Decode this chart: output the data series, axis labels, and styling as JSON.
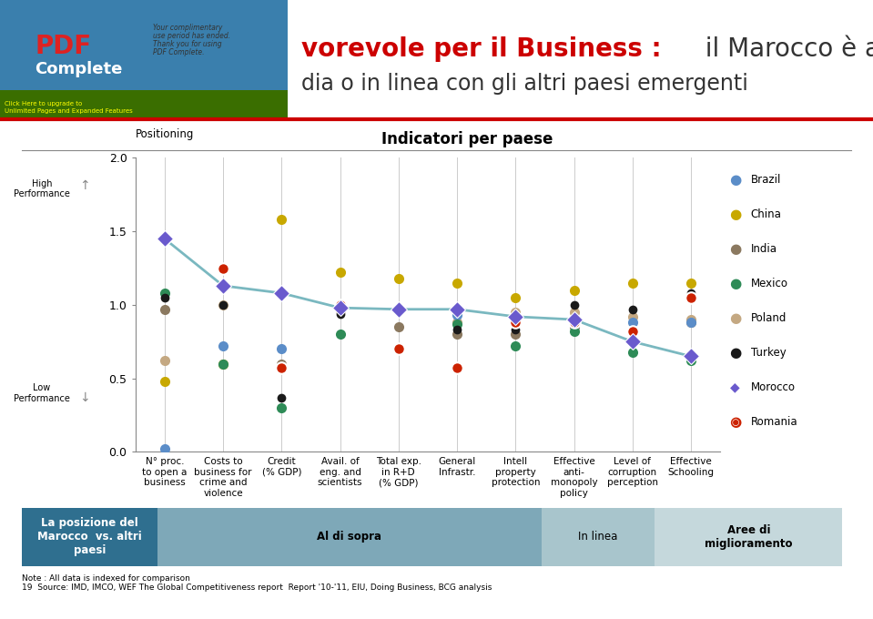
{
  "title": "Indicatori per paese",
  "ylabel": "Positioning",
  "ylim": [
    0.0,
    2.0
  ],
  "yticks": [
    0.0,
    0.5,
    1.0,
    1.5,
    2.0
  ],
  "categories": [
    "N° proc.\nto open a\nbusiness",
    "Costs to\nbusiness for\ncrime and\nviolence",
    "Credit\n(% GDP)",
    "Avail. of\neng. and\nscientists",
    "Total exp.\nin R+D\n(% GDP)",
    "General\nInfrastr.",
    "Intell\nproperty\nprotection",
    "Effective\nanti-\nmonopoly\npolicy",
    "Level of\ncorruption\nperception",
    "Effective\nSchooling"
  ],
  "countries": [
    "Brazil",
    "China",
    "India",
    "Mexico",
    "Poland",
    "Turkey",
    "Morocco",
    "Romania"
  ],
  "colors": {
    "Brazil": "#5b8dc8",
    "China": "#c8a800",
    "India": "#8b7960",
    "Mexico": "#2e8b57",
    "Poland": "#c4a882",
    "Turkey": "#1a1a1a",
    "Morocco": "#6a5acd",
    "Romania": "#cc2200"
  },
  "markers": {
    "Brazil": "o",
    "China": "o",
    "India": "o",
    "Mexico": "o",
    "Poland": "o",
    "Turkey": "o",
    "Morocco": "D",
    "Romania": "o"
  },
  "data": {
    "Brazil": [
      0.02,
      0.72,
      0.7,
      1.0,
      0.97,
      0.93,
      0.92,
      0.9,
      0.88,
      0.88
    ],
    "China": [
      0.48,
      0.6,
      1.58,
      1.22,
      1.18,
      1.15,
      1.05,
      1.1,
      1.15,
      1.15
    ],
    "India": [
      0.97,
      1.13,
      0.6,
      1.0,
      0.85,
      0.8,
      0.8,
      0.85,
      0.75,
      0.88
    ],
    "Mexico": [
      1.08,
      0.6,
      0.3,
      0.8,
      0.7,
      0.87,
      0.72,
      0.82,
      0.68,
      0.62
    ],
    "Poland": [
      0.62,
      1.0,
      0.57,
      0.96,
      0.96,
      0.88,
      0.95,
      0.95,
      0.92,
      0.9
    ],
    "Turkey": [
      1.05,
      1.0,
      0.37,
      0.94,
      0.97,
      0.83,
      0.83,
      1.0,
      0.97,
      1.08
    ],
    "Morocco": [
      1.45,
      1.13,
      1.08,
      0.98,
      0.97,
      0.97,
      0.92,
      0.9,
      0.75,
      0.65
    ],
    "Romania": [
      1.45,
      1.25,
      0.57,
      1.0,
      0.7,
      0.57,
      0.88,
      0.88,
      0.82,
      1.05
    ]
  },
  "morocco_line_color": "#7ab8c0",
  "background_color": "#ffffff",
  "high_performance_label": "High\nPerformance",
  "low_performance_label": "Low\nPerformance",
  "bottom_bar": {
    "label1": "La posizione del\nMarocco  vs. altri\npaesi",
    "label2": "Al di sopra",
    "label3": "In linea",
    "label4": "Aree di\nmiglioramento",
    "color1": "#2f6f8f",
    "color2": "#7ea8b8",
    "color3": "#a8c5cc",
    "color4": "#c5d8dc"
  },
  "note_line1": "Note : All data is indexed for comparison",
  "note_line2": "19  Source: IMD, IMCO, WEF The Global Competitiveness report  Report '10-'11, EIU, Doing Business, BCG analysis",
  "header_bg_color": "#ffffff",
  "header_line1_bold": "vorevole per il Business : ",
  "header_line1_normal": "il Marocco è al di",
  "header_line2": "dia o in linea con gli altri paesi emergenti",
  "header_red_line_color": "#cc0000",
  "pdf_banner_color": "#3a7fad"
}
